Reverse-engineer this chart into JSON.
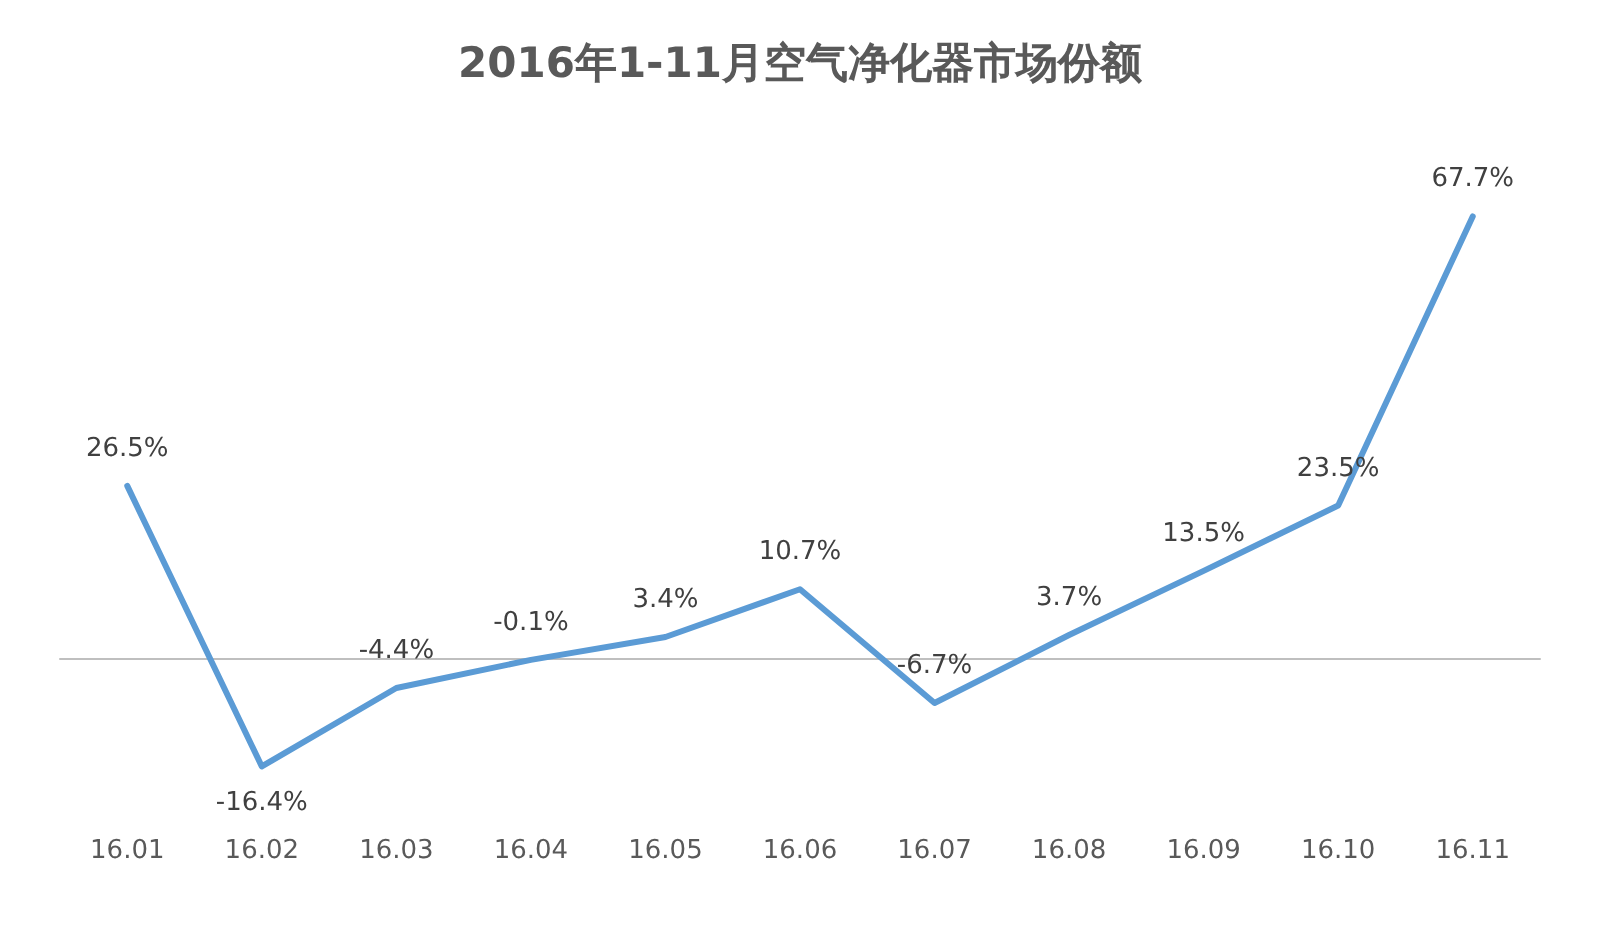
{
  "chart_data": {
    "type": "line",
    "title": "2016年1-11月空气净化器市场份额",
    "categories": [
      "16.01",
      "16.02",
      "16.03",
      "16.04",
      "16.05",
      "16.06",
      "16.07",
      "16.08",
      "16.09",
      "16.10",
      "16.11"
    ],
    "series": [
      {
        "color": "#5b9bd5",
        "values": [
          26.5,
          -16.4,
          -4.4,
          -0.1,
          3.4,
          10.7,
          -6.7,
          3.7,
          13.5,
          23.5,
          67.7
        ],
        "value_labels": [
          "26.5%",
          "-16.4%",
          "-4.4%",
          "-0.1%",
          "3.4%",
          "10.7%",
          "-6.7%",
          "3.7%",
          "13.5%",
          "23.5%",
          "67.7%"
        ]
      }
    ],
    "grid": false,
    "marker": "none",
    "line_style": "solid"
  }
}
